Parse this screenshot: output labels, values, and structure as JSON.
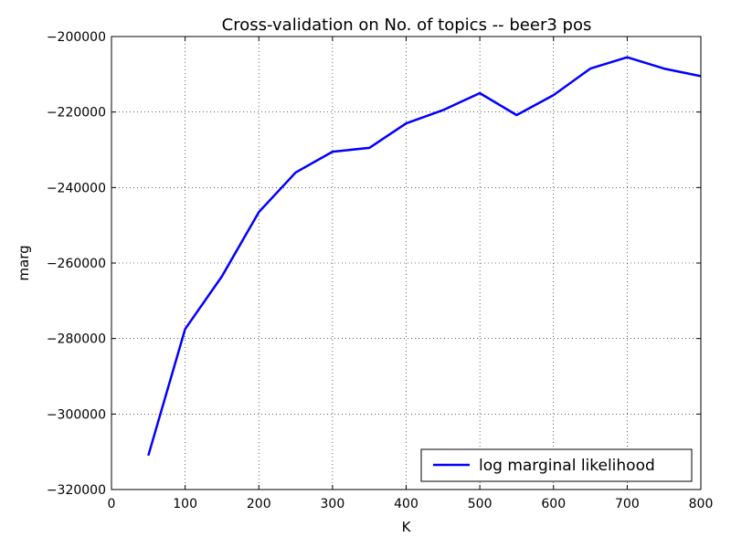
{
  "chart_data": {
    "type": "line",
    "title": "Cross-validation on No. of topics -- beer3 pos",
    "xlabel": "K",
    "ylabel": "marg",
    "xlim": [
      0,
      800
    ],
    "ylim": [
      -320000,
      -200000
    ],
    "xticks": [
      0,
      100,
      200,
      300,
      400,
      500,
      600,
      700,
      800
    ],
    "xtick_labels": [
      "0",
      "100",
      "200",
      "300",
      "400",
      "500",
      "600",
      "700",
      "800"
    ],
    "yticks": [
      -200000,
      -220000,
      -240000,
      -260000,
      -280000,
      -300000,
      -320000
    ],
    "ytick_labels": [
      "−200000",
      "−220000",
      "−240000",
      "−260000",
      "−280000",
      "−300000",
      "−320000"
    ],
    "grid": true,
    "legend": {
      "position": "lower-right",
      "entries": [
        "log marginal likelihood"
      ]
    },
    "series": [
      {
        "name": "log marginal likelihood",
        "color": "#0000ff",
        "x": [
          50,
          100,
          150,
          200,
          250,
          300,
          350,
          400,
          450,
          500,
          550,
          600,
          650,
          700,
          750,
          800
        ],
        "y": [
          -311000,
          -277500,
          -263500,
          -246500,
          -236000,
          -230500,
          -229500,
          -223000,
          -219500,
          -215000,
          -220800,
          -215500,
          -208500,
          -205500,
          -208500,
          -210500
        ]
      }
    ]
  }
}
